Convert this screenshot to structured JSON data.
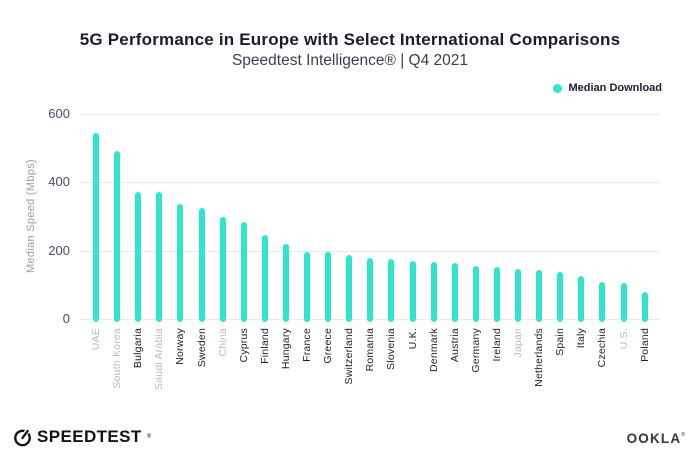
{
  "header": {
    "title": "5G Performance in Europe with Select International Comparisons",
    "subtitle": "Speedtest Intelligence® | Q4 2021"
  },
  "legend": {
    "label": "Median Download"
  },
  "chart_data": {
    "type": "bar",
    "title": "5G Performance in Europe with Select International Comparisons",
    "subtitle": "Speedtest Intelligence® | Q4 2021",
    "xlabel": "",
    "ylabel": "Median Speed (Mbps)",
    "ylim": [
      0,
      600
    ],
    "yticks": [
      0,
      200,
      400,
      600
    ],
    "grid": true,
    "legend_position": "top-right",
    "legend_entries": [
      "Median Download"
    ],
    "bar_color": "#2FE5CD",
    "categories": [
      "UAE",
      "South Korea",
      "Bulgaria",
      "Saudi Arabia",
      "Norway",
      "Sweden",
      "China",
      "Cyprus",
      "Finland",
      "Hungary",
      "France",
      "Greece",
      "Switzerland",
      "Romania",
      "Slovenia",
      "U.K.",
      "Denmark",
      "Austria",
      "Germany",
      "Ireland",
      "Japan",
      "Netherlands",
      "Spain",
      "Italy",
      "Czechia",
      "U.S.",
      "Poland"
    ],
    "values": [
      543,
      492,
      373,
      372,
      338,
      325,
      298,
      284,
      247,
      220,
      196,
      195,
      188,
      180,
      176,
      169,
      166,
      163,
      155,
      152,
      145,
      142,
      137,
      125,
      109,
      105,
      79
    ],
    "international_categories": [
      "UAE",
      "South Korea",
      "Saudi Arabia",
      "China",
      "Japan",
      "U.S."
    ]
  },
  "colors": {
    "accent": "#2FE5CD",
    "label_dark": "#1E1E30",
    "label_international": "#B9BACB",
    "grid": "#E9E9EF",
    "axis_text": "#4B4B63",
    "axis_title": "#9B9BAD"
  },
  "footer": {
    "speedtest": "SPEEDTEST",
    "speedtest_reg": "®",
    "ookla": "OOKLA",
    "ookla_reg": "®"
  }
}
